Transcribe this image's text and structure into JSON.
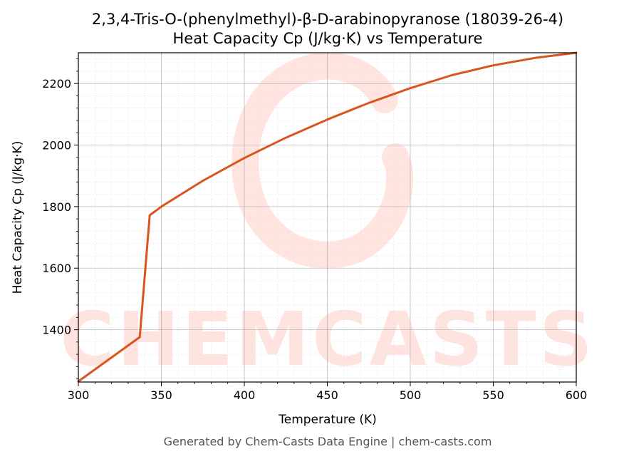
{
  "chart_data": {
    "type": "line",
    "title": "2,3,4-Tris-O-(phenylmethyl)-β-D-arabinopyranose (18039-26-4)",
    "subtitle": "Heat Capacity Cp (J/kg·K) vs Temperature",
    "xlabel": "Temperature (K)",
    "ylabel": "Heat Capacity Cp (J/kg·K)",
    "xlim": [
      300,
      600
    ],
    "ylim": [
      1230,
      2300
    ],
    "x_ticks": [
      300,
      350,
      400,
      450,
      500,
      550,
      600
    ],
    "y_ticks": [
      1400,
      1600,
      1800,
      2000,
      2200
    ],
    "grid": true,
    "series": [
      {
        "color": "#d9541e",
        "x": [
          300,
          337,
          343,
          350,
          375,
          400,
          425,
          450,
          475,
          500,
          525,
          550,
          575,
          600
        ],
        "y": [
          1232,
          1376,
          1772,
          1800,
          1884,
          1958,
          2024,
          2083,
          2137,
          2185,
          2227,
          2259,
          2283,
          2300
        ]
      }
    ]
  },
  "watermark": "CHEMCASTS",
  "footer": "Generated by Chem-Casts Data Engine | chem-casts.com"
}
